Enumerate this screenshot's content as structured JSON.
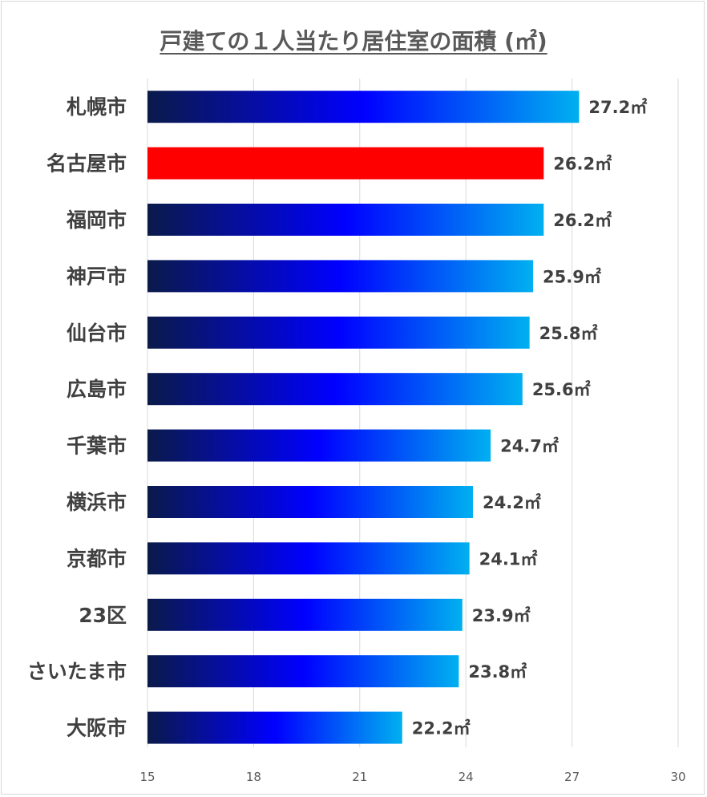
{
  "chart_data": {
    "type": "bar",
    "orientation": "horizontal",
    "title": "戸建ての１人当たり居住室の面積 (㎡)",
    "categories": [
      "札幌市",
      "名古屋市",
      "福岡市",
      "神戸市",
      "仙台市",
      "広島市",
      "千葉市",
      "横浜市",
      "京都市",
      "23区",
      "さいたま市",
      "大阪市"
    ],
    "values": [
      27.2,
      26.2,
      26.2,
      25.9,
      25.8,
      25.6,
      24.7,
      24.2,
      24.1,
      23.9,
      23.8,
      22.2
    ],
    "value_labels": [
      "27.2㎡",
      "26.2㎡",
      "26.2㎡",
      "25.9㎡",
      "25.8㎡",
      "25.6㎡",
      "24.7㎡",
      "24.2㎡",
      "24.1㎡",
      "23.9㎡",
      "23.8㎡",
      "22.2㎡"
    ],
    "highlight_category": "名古屋市",
    "xlim": [
      15,
      30
    ],
    "xticks": [
      15,
      18,
      21,
      24,
      27,
      30
    ],
    "xtick_labels": [
      "15",
      "18",
      "21",
      "24",
      "27",
      "30"
    ],
    "grid": true,
    "legend": "none",
    "colors": {
      "highlight": "#ff0000",
      "gradient_start": "#0a1a4a",
      "gradient_mid": "#0000ff",
      "gradient_end": "#00b0f0",
      "gridline": "#d9d9d9",
      "axis_text": "#595959",
      "label_text": "#404040"
    }
  }
}
